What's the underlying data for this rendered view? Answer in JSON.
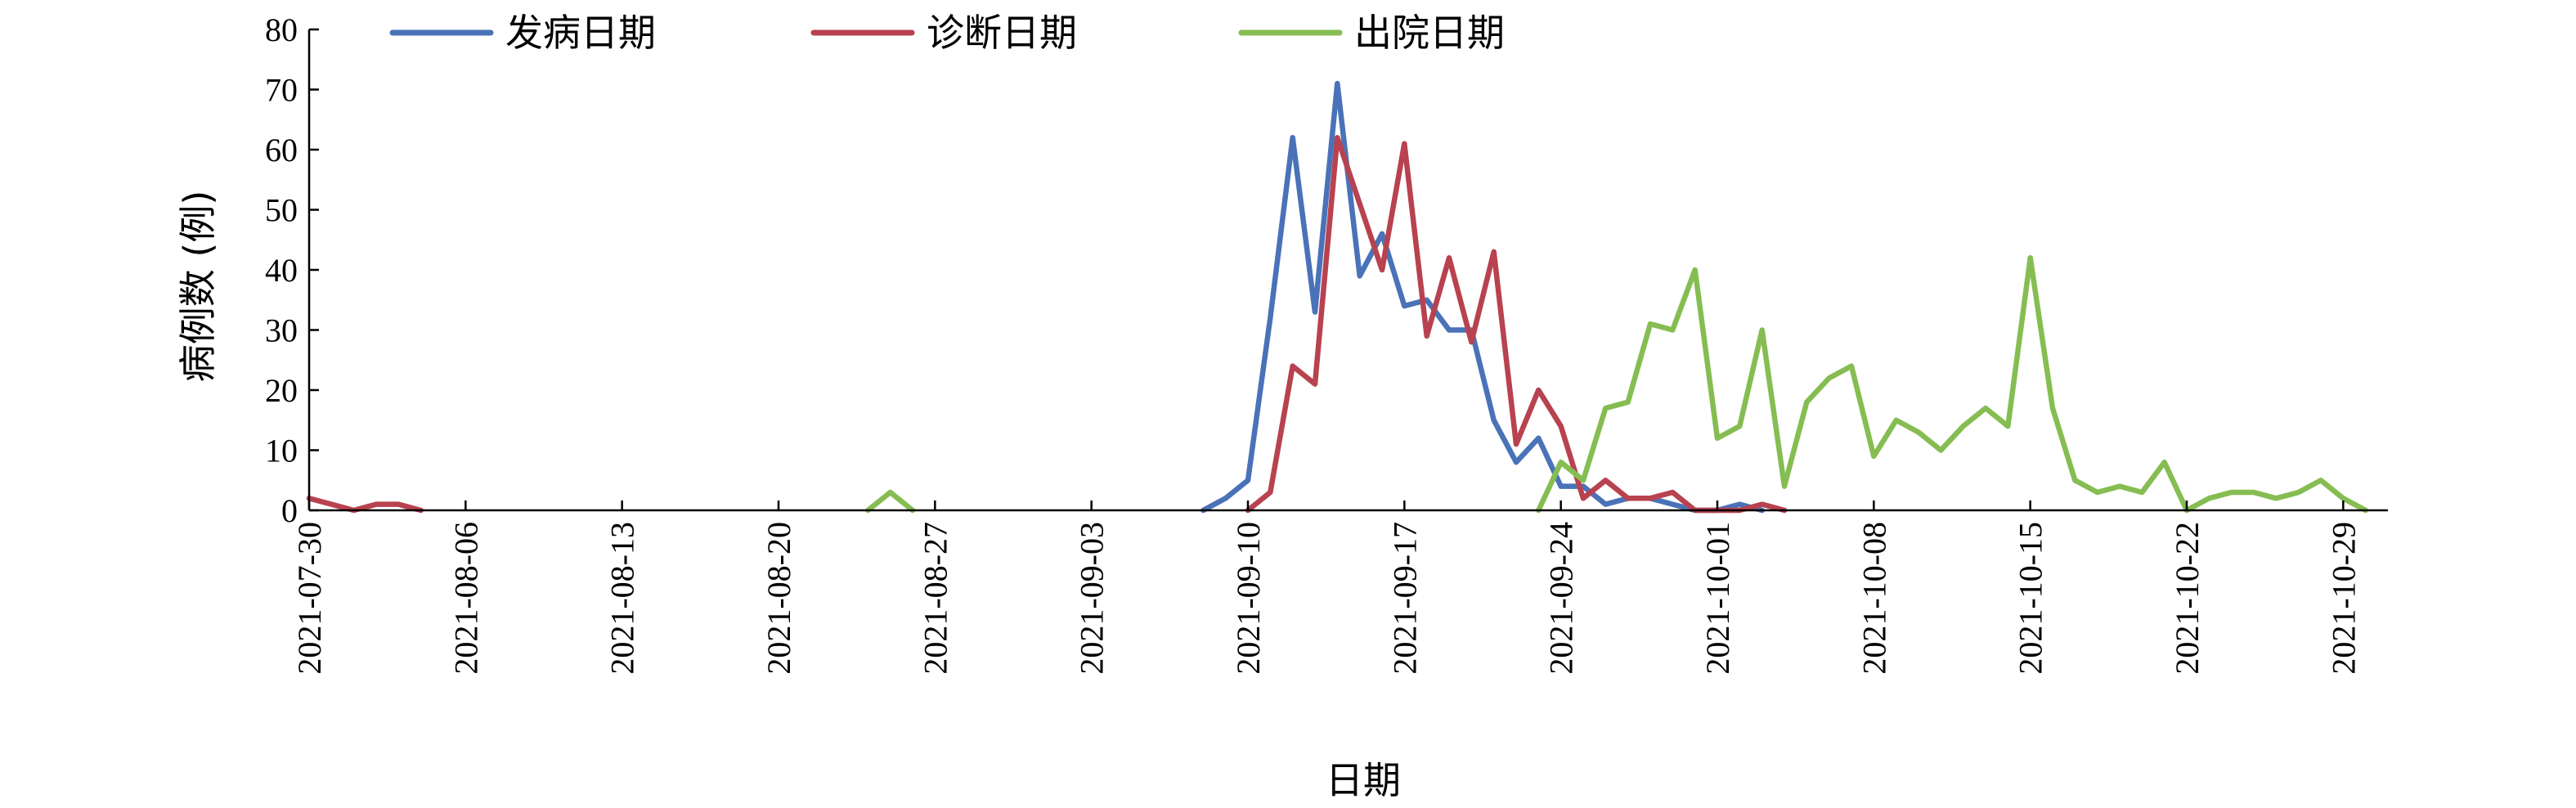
{
  "chart_data": {
    "type": "line",
    "xlabel": "日期",
    "ylabel": "病例数 (例)",
    "ylim": [
      0,
      80
    ],
    "yticks": [
      0,
      10,
      20,
      30,
      40,
      50,
      60,
      70,
      80
    ],
    "xlim": [
      "2021-07-30",
      "2021-10-31"
    ],
    "xticks": [
      "2021-07-30",
      "2021-08-06",
      "2021-08-13",
      "2021-08-20",
      "2021-08-27",
      "2021-09-03",
      "2021-09-10",
      "2021-09-17",
      "2021-09-24",
      "2021-10-01",
      "2021-10-08",
      "2021-10-15",
      "2021-10-22",
      "2021-10-29"
    ],
    "grid": false,
    "legend": "top",
    "series": [
      {
        "name": "发病日期",
        "color": "#4a72b8",
        "points": [
          [
            "2021-09-08",
            0
          ],
          [
            "2021-09-09",
            2
          ],
          [
            "2021-09-10",
            5
          ],
          [
            "2021-09-11",
            32
          ],
          [
            "2021-09-12",
            62
          ],
          [
            "2021-09-13",
            33
          ],
          [
            "2021-09-14",
            71
          ],
          [
            "2021-09-15",
            39
          ],
          [
            "2021-09-16",
            46
          ],
          [
            "2021-09-17",
            34
          ],
          [
            "2021-09-18",
            35
          ],
          [
            "2021-09-19",
            30
          ],
          [
            "2021-09-20",
            30
          ],
          [
            "2021-09-21",
            15
          ],
          [
            "2021-09-22",
            8
          ],
          [
            "2021-09-23",
            12
          ],
          [
            "2021-09-24",
            4
          ],
          [
            "2021-09-25",
            4
          ],
          [
            "2021-09-26",
            1
          ],
          [
            "2021-09-27",
            2
          ],
          [
            "2021-09-28",
            2
          ],
          [
            "2021-09-29",
            1
          ],
          [
            "2021-09-30",
            0
          ],
          [
            "2021-10-01",
            0
          ],
          [
            "2021-10-02",
            1
          ],
          [
            "2021-10-03",
            0
          ]
        ]
      },
      {
        "name": "诊断日期",
        "color": "#b8424f",
        "points": [
          [
            "2021-07-30",
            2
          ],
          [
            "2021-07-31",
            1
          ],
          [
            "2021-08-01",
            0
          ],
          [
            "2021-08-02",
            1
          ],
          [
            "2021-08-03",
            1
          ],
          [
            "2021-08-04",
            0
          ],
          [
            "2021-09-10",
            0
          ],
          [
            "2021-09-11",
            3
          ],
          [
            "2021-09-12",
            24
          ],
          [
            "2021-09-13",
            21
          ],
          [
            "2021-09-14",
            62
          ],
          [
            "2021-09-15",
            51
          ],
          [
            "2021-09-16",
            40
          ],
          [
            "2021-09-17",
            61
          ],
          [
            "2021-09-18",
            29
          ],
          [
            "2021-09-19",
            42
          ],
          [
            "2021-09-20",
            28
          ],
          [
            "2021-09-21",
            43
          ],
          [
            "2021-09-22",
            11
          ],
          [
            "2021-09-23",
            20
          ],
          [
            "2021-09-24",
            14
          ],
          [
            "2021-09-25",
            2
          ],
          [
            "2021-09-26",
            5
          ],
          [
            "2021-09-27",
            2
          ],
          [
            "2021-09-28",
            2
          ],
          [
            "2021-09-29",
            3
          ],
          [
            "2021-09-30",
            0
          ],
          [
            "2021-10-01",
            0
          ],
          [
            "2021-10-02",
            0
          ],
          [
            "2021-10-03",
            1
          ],
          [
            "2021-10-04",
            0
          ]
        ]
      },
      {
        "name": "出院日期",
        "color": "#86bd52",
        "points": [
          [
            "2021-08-24",
            0
          ],
          [
            "2021-08-25",
            3
          ],
          [
            "2021-08-26",
            0
          ],
          [
            "2021-09-23",
            0
          ],
          [
            "2021-09-24",
            8
          ],
          [
            "2021-09-25",
            5
          ],
          [
            "2021-09-26",
            17
          ],
          [
            "2021-09-27",
            18
          ],
          [
            "2021-09-28",
            31
          ],
          [
            "2021-09-29",
            30
          ],
          [
            "2021-09-30",
            40
          ],
          [
            "2021-10-01",
            12
          ],
          [
            "2021-10-02",
            14
          ],
          [
            "2021-10-03",
            30
          ],
          [
            "2021-10-04",
            4
          ],
          [
            "2021-10-05",
            18
          ],
          [
            "2021-10-06",
            22
          ],
          [
            "2021-10-07",
            24
          ],
          [
            "2021-10-08",
            9
          ],
          [
            "2021-10-09",
            15
          ],
          [
            "2021-10-10",
            13
          ],
          [
            "2021-10-11",
            10
          ],
          [
            "2021-10-12",
            14
          ],
          [
            "2021-10-13",
            17
          ],
          [
            "2021-10-14",
            14
          ],
          [
            "2021-10-15",
            42
          ],
          [
            "2021-10-16",
            17
          ],
          [
            "2021-10-17",
            5
          ],
          [
            "2021-10-18",
            3
          ],
          [
            "2021-10-19",
            4
          ],
          [
            "2021-10-20",
            3
          ],
          [
            "2021-10-21",
            8
          ],
          [
            "2021-10-22",
            0
          ],
          [
            "2021-10-23",
            2
          ],
          [
            "2021-10-24",
            3
          ],
          [
            "2021-10-25",
            3
          ],
          [
            "2021-10-26",
            2
          ],
          [
            "2021-10-27",
            3
          ],
          [
            "2021-10-28",
            5
          ],
          [
            "2021-10-29",
            2
          ],
          [
            "2021-10-30",
            0
          ]
        ]
      }
    ]
  }
}
